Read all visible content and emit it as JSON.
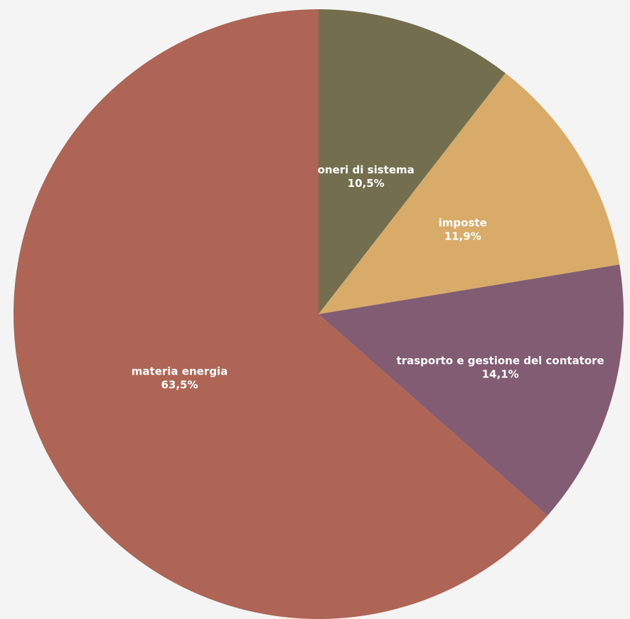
{
  "chart_data": {
    "type": "pie",
    "title": "",
    "start": "top",
    "direction": "clockwise",
    "slices": [
      {
        "label": "oneri di sistema",
        "value": 10.5,
        "value_label": "10,5%",
        "color": "#736f4e"
      },
      {
        "label": "imposte",
        "value": 11.9,
        "value_label": "11,9%",
        "color": "#d8ab69"
      },
      {
        "label": "trasporto e gestione del contatore",
        "value": 14.1,
        "value_label": "14,1%",
        "color": "#815c72"
      },
      {
        "label": "materia energia",
        "value": 63.5,
        "value_label": "63,5%",
        "color": "#ae6555"
      }
    ]
  }
}
